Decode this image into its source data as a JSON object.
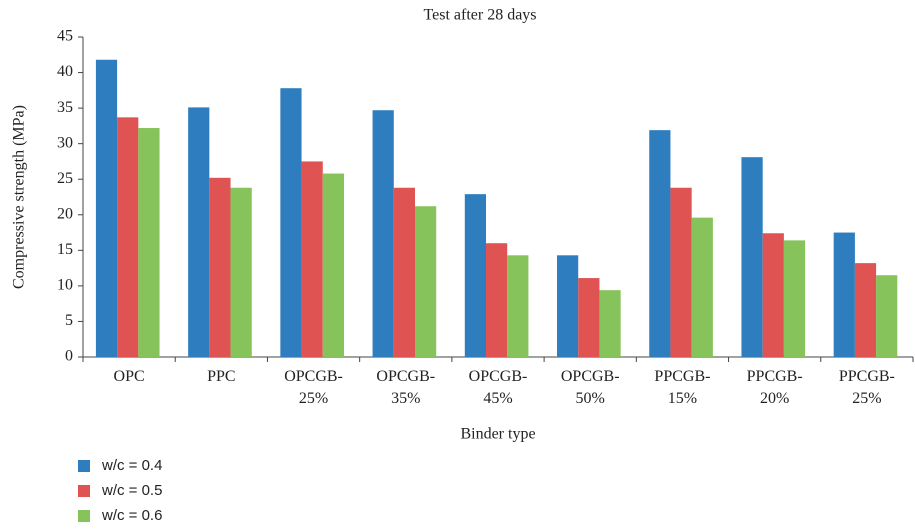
{
  "chart_data": {
    "type": "bar",
    "title": "Test after 28 days",
    "x_label": "Binder type",
    "y_label": "Compressive strength (MPa)",
    "categories": [
      "OPC",
      "PPC",
      "OPCGB-\n25%",
      "OPCGB-\n35%",
      "OPCGB-\n45%",
      "OPCGB-\n50%",
      "PPCGB-\n15%",
      "PPCGB-\n20%",
      "PPCGB-\n25%"
    ],
    "series": [
      {
        "name": "w/c = 0.4",
        "color": "#2e7ebf",
        "values": [
          41.8,
          35.1,
          37.8,
          34.7,
          22.9,
          14.3,
          31.9,
          28.1,
          17.5
        ]
      },
      {
        "name": "w/c = 0.5",
        "color": "#e05353",
        "values": [
          33.7,
          25.2,
          27.5,
          23.8,
          16.0,
          11.1,
          23.8,
          17.4,
          13.2
        ]
      },
      {
        "name": "w/c = 0.6",
        "color": "#86c45b",
        "values": [
          32.2,
          23.8,
          25.8,
          21.2,
          14.3,
          9.4,
          19.6,
          16.4,
          11.5
        ]
      }
    ],
    "ylim": [
      0,
      45
    ],
    "yticks": [
      0,
      5,
      10,
      15,
      20,
      25,
      30,
      35,
      40,
      45
    ],
    "grid": false,
    "legend": "bottom-left"
  }
}
